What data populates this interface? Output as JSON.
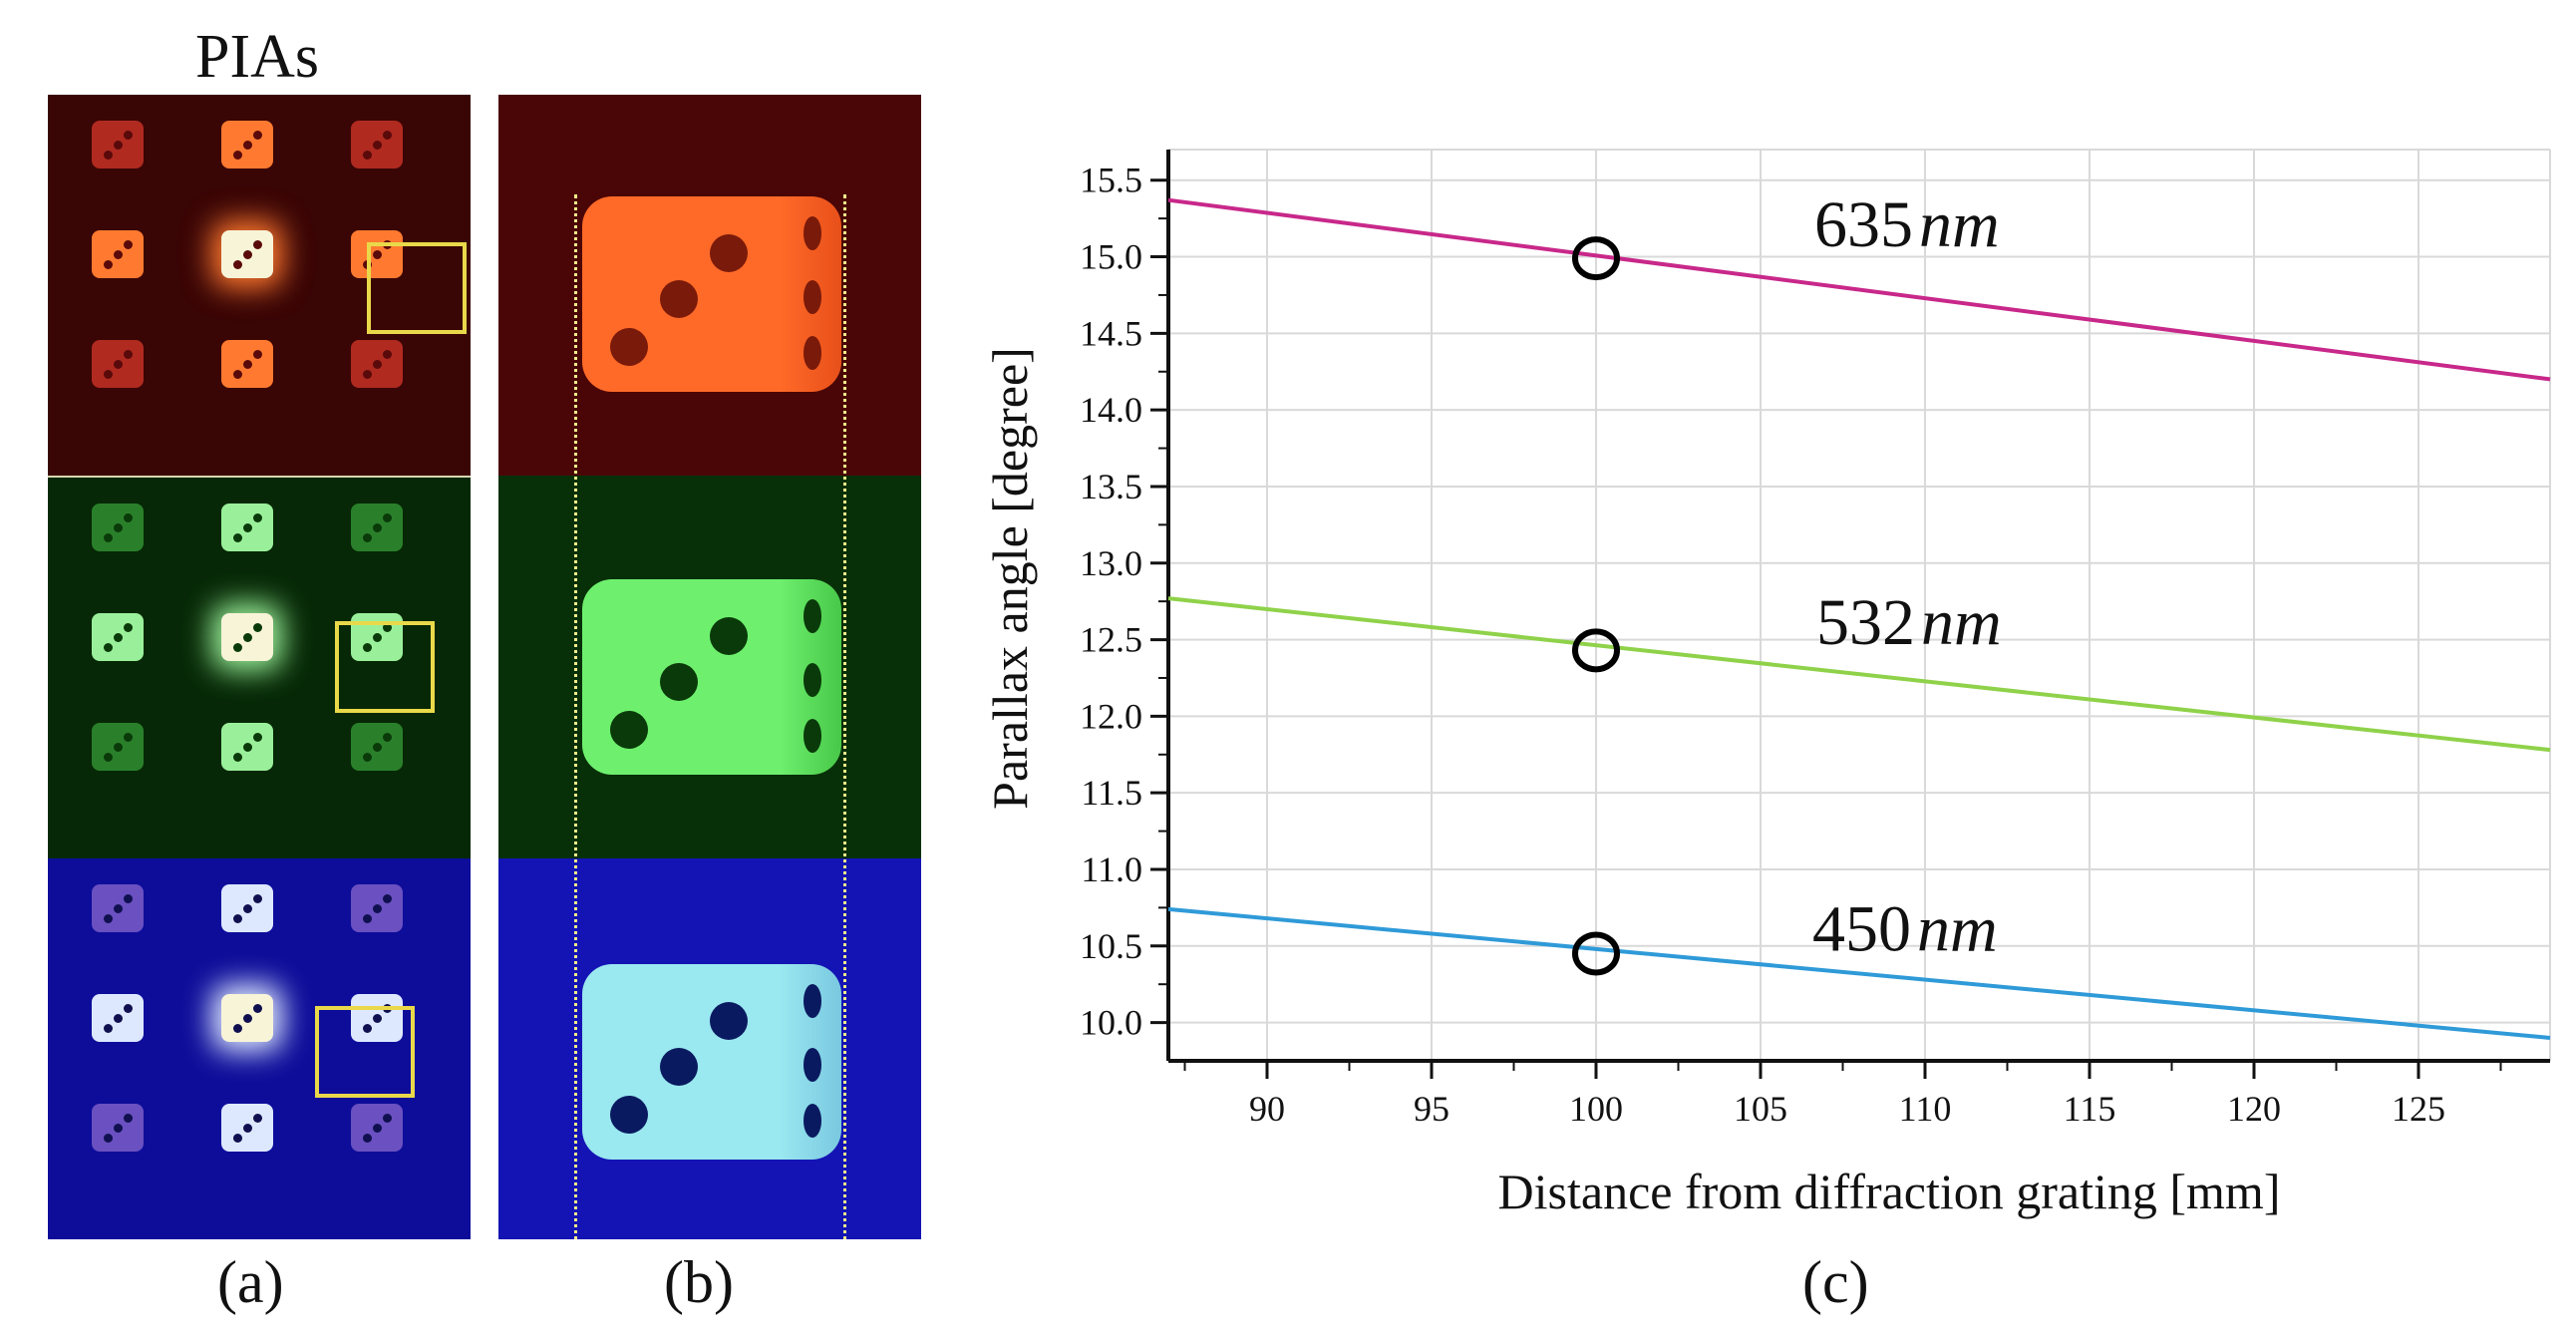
{
  "figure": {
    "panel_a_title": "PIAs",
    "labels": {
      "a": "(a)",
      "b": "(b)",
      "c": "(c)"
    }
  },
  "colors": {
    "red_band": "#5a0808",
    "green_band": "#0a3a0a",
    "blue_band": "#1010a8",
    "highlight_box": "#e9d94a",
    "dashed_guides": "#f3ec8a",
    "line_635": "#c8288a",
    "line_532": "#8fd24a",
    "line_450": "#2f9ad8"
  },
  "chart_data": {
    "type": "line",
    "title": "",
    "xlabel": "Distance from diffraction grating [mm]",
    "ylabel": "Parallax angle [degree]",
    "xlim": [
      87,
      129
    ],
    "ylim": [
      9.75,
      15.7
    ],
    "xticks": [
      90,
      95,
      100,
      105,
      110,
      115,
      120,
      125
    ],
    "yticks": [
      10.0,
      10.5,
      11.0,
      11.5,
      12.0,
      12.5,
      13.0,
      13.5,
      14.0,
      14.5,
      15.0,
      15.5
    ],
    "grid": true,
    "series": [
      {
        "name": "635",
        "unit": "nm",
        "color": "#c8288a",
        "x": [
          87,
          129
        ],
        "y": [
          15.37,
          14.2
        ]
      },
      {
        "name": "532",
        "unit": "nm",
        "color": "#8fd24a",
        "x": [
          87,
          129
        ],
        "y": [
          12.77,
          11.78
        ]
      },
      {
        "name": "450",
        "unit": "nm",
        "color": "#2f9ad8",
        "x": [
          87,
          129
        ],
        "y": [
          10.74,
          9.9
        ]
      }
    ],
    "markers": [
      {
        "x": 100,
        "y": 14.99
      },
      {
        "x": 100,
        "y": 12.43
      },
      {
        "x": 100,
        "y": 10.45
      }
    ]
  }
}
